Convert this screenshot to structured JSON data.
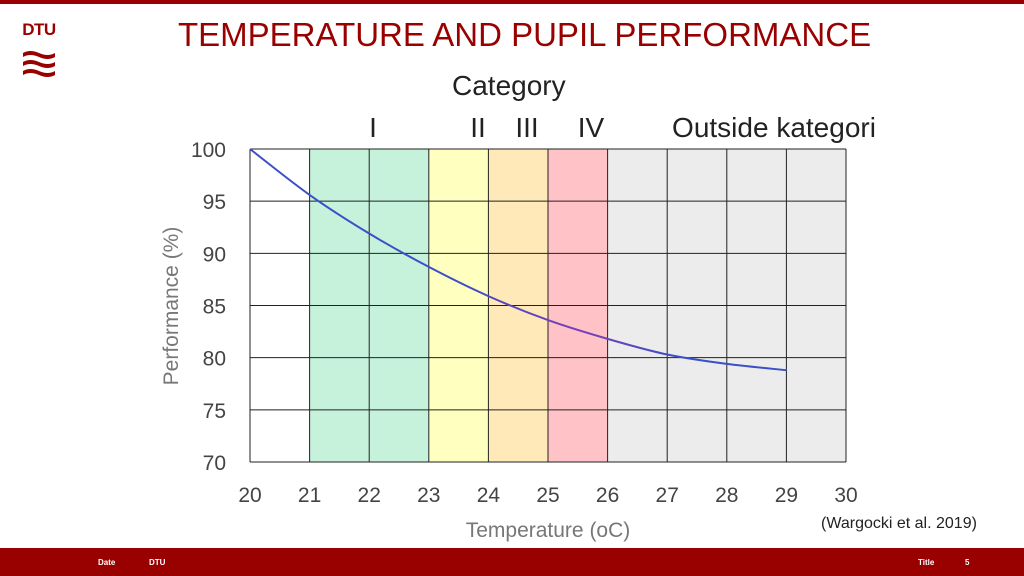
{
  "logo": {
    "text": "DTU"
  },
  "title": "TEMPERATURE AND PUPIL PERFORMANCE",
  "category_title": "Category",
  "categories": [
    "I",
    "II",
    "III",
    "IV",
    "Outside kategori"
  ],
  "citation": "(Wargocki et al. 2019)",
  "footer": {
    "date": "Date",
    "org": "DTU",
    "title": "Title",
    "page": "5"
  },
  "colors": {
    "brand": "#990000",
    "cat_I": "#c6f2dc",
    "cat_II": "#ffffc0",
    "cat_III": "#ffe9b8",
    "cat_IV": "#ffc2c6",
    "outside": "#ececec",
    "line": "#3b4fc8",
    "line_mid": "#7a3fb8"
  },
  "chart_data": {
    "type": "line",
    "xlabel": "Temperature (oC)",
    "ylabel": "Performance (%)",
    "xlim": [
      20,
      30
    ],
    "ylim": [
      70,
      100
    ],
    "xticks": [
      20,
      21,
      22,
      23,
      24,
      25,
      26,
      27,
      28,
      29,
      30
    ],
    "yticks": [
      70,
      75,
      80,
      85,
      90,
      95,
      100
    ],
    "grid": true,
    "bands": [
      {
        "label": "I",
        "x0": 21,
        "x1": 23
      },
      {
        "label": "II",
        "x0": 23,
        "x1": 24
      },
      {
        "label": "III",
        "x0": 24,
        "x1": 25
      },
      {
        "label": "IV",
        "x0": 25,
        "x1": 26
      },
      {
        "label": "Outside kategori",
        "x0": 26,
        "x1": 30
      }
    ],
    "series": [
      {
        "x": [
          20,
          21,
          22,
          23,
          24,
          25,
          26,
          27,
          28,
          29
        ],
        "values": [
          100,
          95.6,
          91.9,
          88.7,
          85.9,
          83.6,
          81.8,
          80.3,
          79.4,
          78.8
        ]
      }
    ]
  }
}
